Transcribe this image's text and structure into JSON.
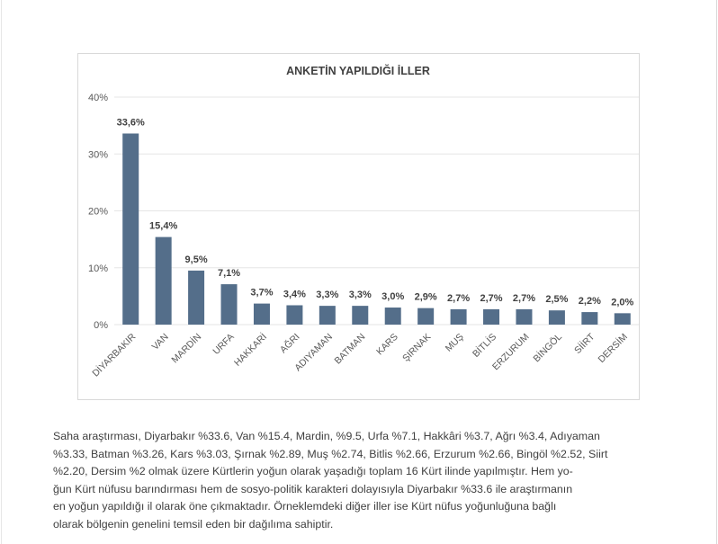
{
  "chart_data": {
    "type": "bar",
    "title": "ANKETİN YAPILDIĞI İLLER",
    "xlabel": "",
    "ylabel": "",
    "ylim": [
      0,
      40
    ],
    "yticks": [
      0,
      10,
      20,
      30,
      40
    ],
    "ytick_labels": [
      "0%",
      "10%",
      "20%",
      "30%",
      "40%"
    ],
    "grid": true,
    "bar_color": "#546e8a",
    "grid_color": "#e5e5e5",
    "categories": [
      "DİYARBAKIR",
      "VAN",
      "MARDİN",
      "URFA",
      "HAKKARİ",
      "AĞRI",
      "ADIYAMAN",
      "BATMAN",
      "KARS",
      "ŞIRNAK",
      "MUŞ",
      "BİTLİS",
      "ERZURUM",
      "BİNGÖL",
      "SİİRT",
      "DERSİM"
    ],
    "values": [
      33.6,
      15.4,
      9.5,
      7.1,
      3.7,
      3.4,
      3.3,
      3.3,
      3.0,
      2.9,
      2.7,
      2.7,
      2.7,
      2.5,
      2.2,
      2.0
    ],
    "data_labels": [
      "33,6%",
      "15,4%",
      "9,5%",
      "7,1%",
      "3,7%",
      "3,4%",
      "3,3%",
      "3,3%",
      "3,0%",
      "2,9%",
      "2,7%",
      "2,7%",
      "2,7%",
      "2,5%",
      "2,2%",
      "2,0%"
    ]
  },
  "caption": {
    "lines": [
      "Saha araştırması, Diyarbakır %33.6, Van %15.4, Mardin, %9.5, Urfa %7.1, Hakkâri %3.7, Ağrı %3.4, Adıyaman",
      "%3.33, Batman %3.26, Kars %3.03, Şırnak %2.89, Muş %2.74, Bitlis %2.66, Erzurum %2.66, Bingöl %2.52, Siirt",
      "%2.20, Dersim %2 olmak üzere Kürtlerin yoğun olarak yaşadığı toplam 16 Kürt ilinde yapılmıştır. Hem yo-",
      "ğun Kürt nüfusu barındırması hem de sosyo-politik karakteri dolayısıyla Diyarbakır %33.6 ile araştırmanın",
      "en yoğun yapıldığı il olarak öne çıkmaktadır. Örneklemdeki diğer iller ise Kürt nüfus yoğunluğuna bağlı",
      "olarak bölgenin genelini temsil eden bir dağılıma sahiptir."
    ]
  }
}
